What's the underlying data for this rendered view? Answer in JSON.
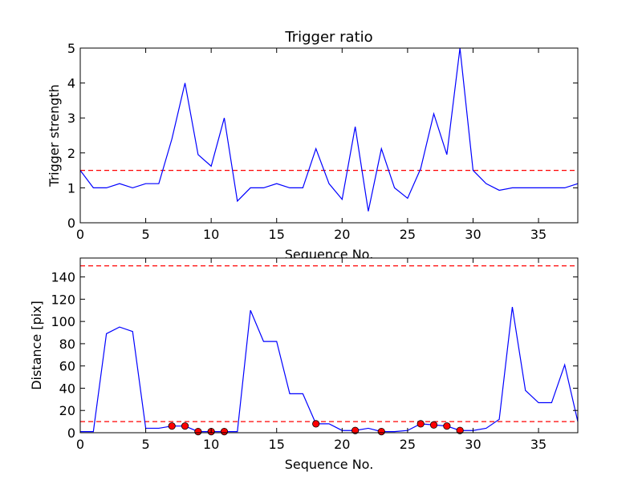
{
  "colors": {
    "line": "#0000ff",
    "threshold": "#ff0000",
    "marker_fill": "#ff0000",
    "marker_edge": "#000000",
    "axes": "#000000",
    "background": "#ffffff"
  },
  "chart_data": [
    {
      "type": "line",
      "title": "Trigger ratio",
      "xlabel": "Sequence No.",
      "ylabel": "Trigger strength",
      "xlim": [
        0,
        38
      ],
      "ylim": [
        0,
        5
      ],
      "xticks": [
        0,
        5,
        10,
        15,
        20,
        25,
        30,
        35
      ],
      "yticks": [
        0,
        1,
        2,
        3,
        4,
        5
      ],
      "grid": false,
      "x": [
        0,
        1,
        2,
        3,
        4,
        5,
        6,
        7,
        8,
        9,
        10,
        11,
        12,
        13,
        14,
        15,
        16,
        17,
        18,
        19,
        20,
        21,
        22,
        23,
        24,
        25,
        26,
        27,
        28,
        29,
        30,
        31,
        32,
        33,
        34,
        35,
        36,
        37,
        38
      ],
      "series": [
        {
          "style": "solid",
          "values": [
            1.5,
            1.0,
            1.0,
            1.12,
            1.0,
            1.12,
            1.12,
            2.4,
            4.0,
            1.95,
            1.62,
            3.0,
            0.62,
            1.0,
            1.0,
            1.12,
            1.0,
            1.0,
            2.12,
            1.12,
            0.67,
            2.75,
            0.33,
            2.12,
            1.0,
            0.7,
            1.55,
            3.12,
            1.95,
            5.0,
            1.5,
            1.12,
            0.93,
            1.0,
            1.0,
            1.0,
            1.0,
            1.0,
            1.12
          ]
        }
      ],
      "hlines": [
        1.5
      ]
    },
    {
      "type": "line",
      "title": "",
      "xlabel": "Sequence No.",
      "ylabel": "Distance [pix]",
      "xlim": [
        0,
        38
      ],
      "ylim": [
        0,
        157
      ],
      "xticks": [
        0,
        5,
        10,
        15,
        20,
        25,
        30,
        35
      ],
      "yticks": [
        0,
        20,
        40,
        60,
        80,
        100,
        120,
        140
      ],
      "grid": false,
      "x": [
        0,
        1,
        2,
        3,
        4,
        5,
        6,
        7,
        8,
        9,
        10,
        11,
        12,
        13,
        14,
        15,
        16,
        17,
        18,
        19,
        20,
        21,
        22,
        23,
        24,
        25,
        26,
        27,
        28,
        29,
        30,
        31,
        32,
        33,
        34,
        35,
        36,
        37,
        38
      ],
      "series": [
        {
          "style": "solid",
          "values": [
            1,
            1,
            89,
            95,
            91,
            4,
            4,
            6,
            6,
            1,
            1,
            1,
            1,
            110,
            82,
            82,
            35,
            35,
            8,
            8,
            2,
            2,
            4,
            1,
            1,
            2,
            8,
            7,
            6,
            2,
            2,
            4,
            12,
            113,
            38,
            27,
            27,
            61,
            10
          ]
        }
      ],
      "hlines": [
        150,
        10
      ],
      "markers": {
        "x": [
          7,
          8,
          9,
          10,
          11,
          18,
          21,
          23,
          26,
          27,
          28,
          29
        ],
        "y": [
          6,
          6,
          1,
          1,
          1,
          8,
          2,
          1,
          8,
          7,
          6,
          2
        ]
      }
    }
  ]
}
